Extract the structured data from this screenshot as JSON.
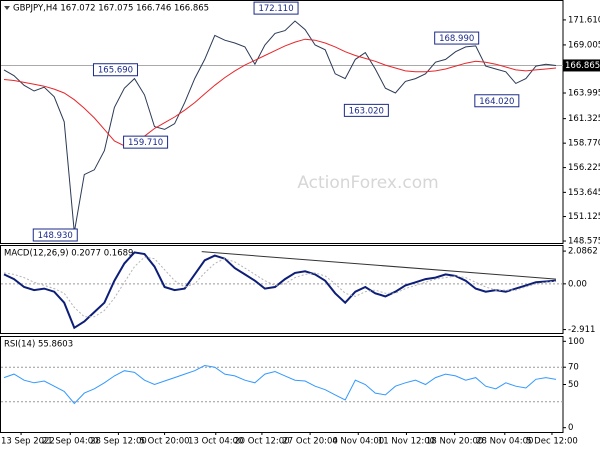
{
  "watermark": "ActionForex.com",
  "chart_data": [
    {
      "type": "line",
      "title": "GBPJPY,H4  167.072 167.075 166.746 166.865",
      "xlim": [
        -0.3,
        55.7
      ],
      "ylim": [
        148.37,
        173.58
      ],
      "yticks": [
        {
          "value": 171.61,
          "label": "171.610"
        },
        169.005,
        163.995,
        161.325,
        {
          "value": 158.77,
          "label": "158.770"
        },
        156.225,
        153.645,
        151.125,
        148.575
      ],
      "last_price": 166.865,
      "series": [
        {
          "color": "#2b3a55",
          "values": [
            166.4,
            165.8,
            164.8,
            164.2,
            164.6,
            163.6,
            161.0,
            149.5,
            155.5,
            156.0,
            158.0,
            162.5,
            164.5,
            165.5,
            163.8,
            160.5,
            160.2,
            160.8,
            163.0,
            165.5,
            167.5,
            170.0,
            169.5,
            169.2,
            168.8,
            167.0,
            169.0,
            170.2,
            170.5,
            171.5,
            170.6,
            169.0,
            168.5,
            166.0,
            165.5,
            167.5,
            168.2,
            166.5,
            164.5,
            164.0,
            165.2,
            165.5,
            166.0,
            167.2,
            167.5,
            168.3,
            168.8,
            168.9,
            166.8,
            166.5,
            166.2,
            165.0,
            165.5,
            166.8,
            167.0,
            166.865
          ]
        },
        {
          "color": "#e8262b",
          "values": [
            165.4,
            165.3,
            165.1,
            164.9,
            164.7,
            164.4,
            164.0,
            163.3,
            162.4,
            161.4,
            160.2,
            159.0,
            158.5,
            158.8,
            159.5,
            160.3,
            160.9,
            161.5,
            162.2,
            163.0,
            163.9,
            164.8,
            165.6,
            166.3,
            166.9,
            167.4,
            167.9,
            168.4,
            168.9,
            169.3,
            169.6,
            169.5,
            169.2,
            168.8,
            168.3,
            167.9,
            167.6,
            167.3,
            166.9,
            166.6,
            166.3,
            166.2,
            166.2,
            166.3,
            166.5,
            166.8,
            167.1,
            167.3,
            167.2,
            167.0,
            166.7,
            166.4,
            166.3,
            166.4,
            166.5,
            166.6
          ]
        }
      ],
      "annotations": [
        {
          "text": "172.110",
          "x": 29,
          "y": 172.11
        },
        {
          "text": "168.990",
          "x": 47,
          "y": 168.99
        },
        {
          "text": "165.690",
          "x": 13,
          "y": 165.69
        },
        {
          "text": "159.710",
          "x": 16,
          "y": 159.71
        },
        {
          "text": "163.020",
          "x": 38,
          "y": 163.02
        },
        {
          "text": "164.020",
          "x": 51,
          "y": 164.02
        },
        {
          "text": "148.930",
          "x": 7,
          "y": 148.93
        }
      ]
    },
    {
      "type": "line",
      "title": "MACD(12,26,9) 0.2077 0.1689",
      "xlim": [
        -0.3,
        55.7
      ],
      "ylim": [
        -3.13,
        2.41
      ],
      "yticks": [
        2.0862,
        {
          "value": 0,
          "label": "0.00"
        },
        -2.911
      ],
      "levels": [
        0
      ],
      "series": [
        {
          "color": "#0d1e78",
          "values": [
            0.6,
            0.3,
            -0.2,
            -0.4,
            -0.3,
            -0.5,
            -1.2,
            -2.8,
            -2.4,
            -1.8,
            -1.2,
            0.2,
            1.3,
            2.0,
            1.9,
            1.1,
            -0.2,
            -0.4,
            -0.3,
            0.6,
            1.5,
            1.8,
            1.6,
            1.0,
            0.6,
            0.2,
            -0.3,
            -0.2,
            0.3,
            0.7,
            0.8,
            0.6,
            0.2,
            -0.6,
            -1.2,
            -0.5,
            -0.2,
            -0.6,
            -0.8,
            -0.5,
            -0.1,
            0.1,
            0.3,
            0.4,
            0.6,
            0.5,
            0.2,
            -0.3,
            -0.5,
            -0.4,
            -0.5,
            -0.3,
            -0.1,
            0.1,
            0.15,
            0.2077
          ]
        },
        {
          "color": "#b4b4b4",
          "style": "dotted",
          "values": [
            0.7,
            0.6,
            0.4,
            0.1,
            -0.1,
            -0.3,
            -0.6,
            -1.5,
            -2.1,
            -2.1,
            -1.7,
            -0.9,
            0.1,
            1.1,
            1.7,
            1.6,
            0.9,
            0.2,
            -0.2,
            0.0,
            0.7,
            1.3,
            1.6,
            1.4,
            1.0,
            0.6,
            0.2,
            -0.1,
            0.0,
            0.4,
            0.6,
            0.7,
            0.5,
            0.0,
            -0.6,
            -0.8,
            -0.5,
            -0.4,
            -0.6,
            -0.6,
            -0.3,
            -0.1,
            0.1,
            0.3,
            0.4,
            0.5,
            0.4,
            0.1,
            -0.2,
            -0.4,
            -0.4,
            -0.4,
            -0.2,
            0.0,
            0.1,
            0.1689
          ]
        }
      ],
      "trendline": {
        "color": "#333333",
        "x": [
          19.7,
          55
        ],
        "values": [
          2.05,
          0.3
        ]
      }
    },
    {
      "type": "line",
      "title": "RSI(14) 55.8603",
      "xlim": [
        -0.3,
        55.7
      ],
      "ylim": [
        -5,
        105
      ],
      "yticks": [
        100,
        70,
        50,
        0
      ],
      "levels": [
        70,
        30
      ],
      "series": [
        {
          "color": "#3399ff",
          "values": [
            58,
            62,
            55,
            52,
            54,
            48,
            42,
            28,
            40,
            45,
            52,
            60,
            66,
            64,
            55,
            50,
            54,
            58,
            62,
            66,
            72,
            70,
            62,
            60,
            55,
            52,
            62,
            65,
            60,
            55,
            54,
            48,
            44,
            38,
            32,
            55,
            50,
            40,
            38,
            48,
            52,
            55,
            50,
            58,
            62,
            60,
            55,
            58,
            48,
            45,
            52,
            48,
            46,
            56,
            58,
            55.8603
          ]
        }
      ],
      "xticks": [
        {
          "value": 1.7,
          "label": "13 Sep 2022"
        },
        {
          "value": 6.6,
          "label": "21 Sep 04:00"
        },
        {
          "value": 11.4,
          "label": "28 Sep 12:00"
        },
        {
          "value": 16.0,
          "label": "5 Oct 20:00"
        },
        {
          "value": 21.1,
          "label": "13 Oct 04:00"
        },
        {
          "value": 25.7,
          "label": "20 Oct 12:00"
        },
        {
          "value": 30.5,
          "label": "27 Oct 20:00"
        },
        {
          "value": 35.3,
          "label": "4 Nov 04:00"
        },
        {
          "value": 40.1,
          "label": "11 Nov 12:00"
        },
        {
          "value": 44.9,
          "label": "18 Nov 20:00"
        },
        {
          "value": 49.9,
          "label": "28 Nov 04:00"
        },
        {
          "value": 54.6,
          "label": "5 Dec 12:00"
        }
      ]
    }
  ]
}
